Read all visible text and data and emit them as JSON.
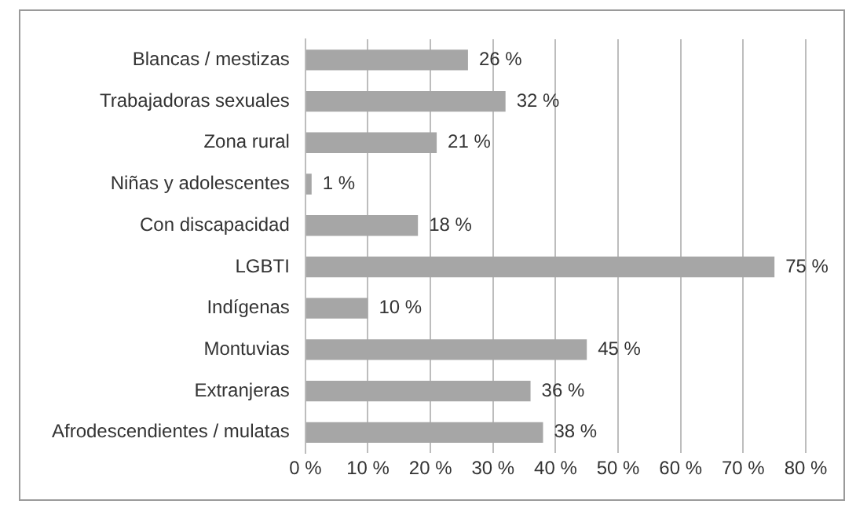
{
  "chart_data": {
    "type": "bar",
    "orientation": "horizontal",
    "categories": [
      "Blancas / mestizas",
      "Trabajadoras sexuales",
      "Zona rural",
      "Niñas y adolescentes",
      "Con discapacidad",
      "LGBTI",
      "Indígenas",
      "Montuvias",
      "Extranjeras",
      "Afrodescendientes / mulatas"
    ],
    "values": [
      26,
      32,
      21,
      1,
      18,
      75,
      10,
      45,
      36,
      38
    ],
    "value_labels": [
      "26 %",
      "32 %",
      "21 %",
      "1 %",
      "18 %",
      "75 %",
      "10 %",
      "45 %",
      "36 %",
      "38 %"
    ],
    "color": "#a6a6a6",
    "xlim": [
      0,
      80
    ],
    "xticks": [
      {
        "value": 0,
        "label": "0 %"
      },
      {
        "value": 10,
        "label": "10 %"
      },
      {
        "value": 20,
        "label": "20 %"
      },
      {
        "value": 30,
        "label": "30 %"
      },
      {
        "value": 40,
        "label": "40 %"
      },
      {
        "value": 50,
        "label": "50 %"
      },
      {
        "value": 60,
        "label": "60 %"
      },
      {
        "value": 70,
        "label": "70 %"
      },
      {
        "value": 80,
        "label": "80 %"
      }
    ],
    "grid": "x",
    "legend": false
  }
}
